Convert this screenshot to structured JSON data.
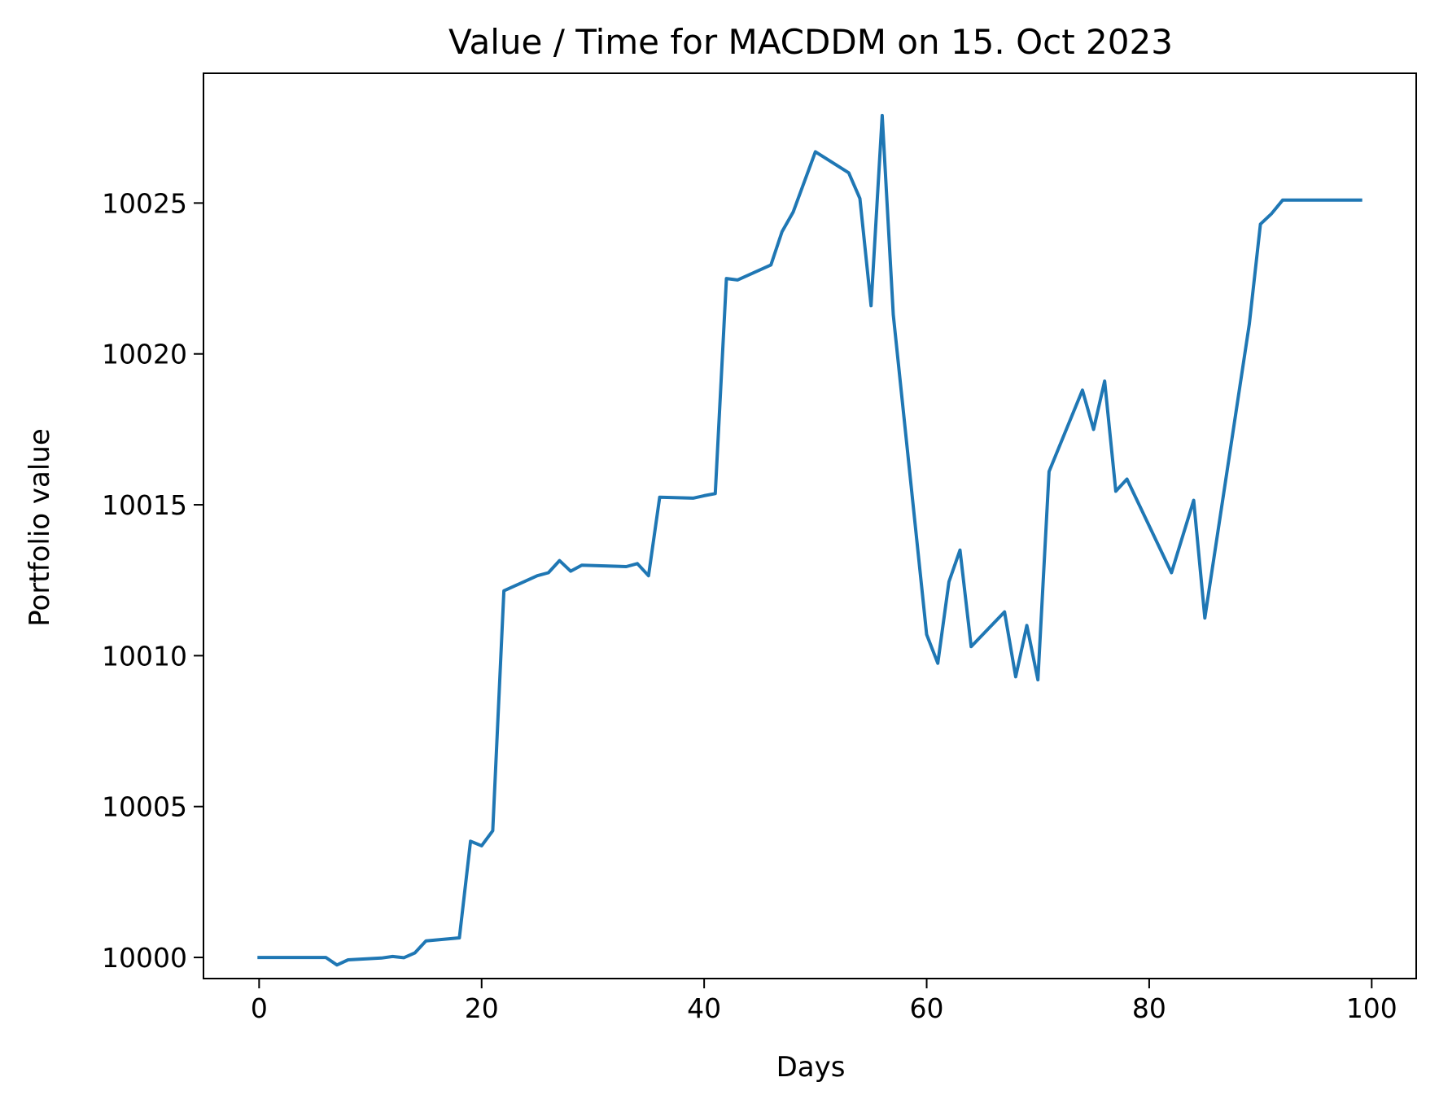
{
  "chart_data": {
    "type": "line",
    "title": "Value / Time for MACDDM on 15. Oct 2023",
    "xlabel": "Days",
    "ylabel": "Portfolio value",
    "xlim": [
      -5,
      104
    ],
    "ylim": [
      9999.3,
      10029.3
    ],
    "x_ticks": [
      0,
      20,
      40,
      60,
      80,
      100
    ],
    "y_ticks": [
      10000,
      10005,
      10010,
      10015,
      10020,
      10025
    ],
    "grid": false,
    "legend": "none",
    "series": [
      {
        "color": "#1f77b4",
        "points": [
          [
            0,
            10000.0
          ],
          [
            6,
            10000.0
          ],
          [
            7,
            9999.75
          ],
          [
            8,
            9999.92
          ],
          [
            11,
            9999.98
          ],
          [
            12,
            10000.03
          ],
          [
            13,
            9999.99
          ],
          [
            14,
            10000.15
          ],
          [
            15,
            10000.55
          ],
          [
            18,
            10000.65
          ],
          [
            19,
            10003.85
          ],
          [
            20,
            10003.7
          ],
          [
            21,
            10004.2
          ],
          [
            22,
            10012.15
          ],
          [
            25,
            10012.65
          ],
          [
            26,
            10012.75
          ],
          [
            27,
            10013.15
          ],
          [
            28,
            10012.8
          ],
          [
            29,
            10013.0
          ],
          [
            33,
            10012.95
          ],
          [
            34,
            10013.05
          ],
          [
            35,
            10012.65
          ],
          [
            36,
            10015.25
          ],
          [
            39,
            10015.22
          ],
          [
            40,
            10015.3
          ],
          [
            41,
            10015.37
          ],
          [
            42,
            10022.5
          ],
          [
            43,
            10022.45
          ],
          [
            46,
            10022.95
          ],
          [
            47,
            10024.05
          ],
          [
            48,
            10024.7
          ],
          [
            50,
            10026.7
          ],
          [
            53,
            10026.0
          ],
          [
            54,
            10025.15
          ],
          [
            55,
            10021.6
          ],
          [
            56,
            10027.9
          ],
          [
            57,
            10021.3
          ],
          [
            60,
            10010.7
          ],
          [
            61,
            10009.75
          ],
          [
            62,
            10012.45
          ],
          [
            63,
            10013.5
          ],
          [
            64,
            10010.3
          ],
          [
            67,
            10011.45
          ],
          [
            68,
            10009.3
          ],
          [
            69,
            10011.0
          ],
          [
            70,
            10009.2
          ],
          [
            71,
            10016.1
          ],
          [
            74,
            10018.8
          ],
          [
            75,
            10017.5
          ],
          [
            76,
            10019.1
          ],
          [
            77,
            10015.45
          ],
          [
            78,
            10015.85
          ],
          [
            82,
            10012.75
          ],
          [
            84,
            10015.15
          ],
          [
            85,
            10011.25
          ],
          [
            89,
            10021.0
          ],
          [
            90,
            10024.3
          ],
          [
            91,
            10024.65
          ],
          [
            92,
            10025.1
          ],
          [
            99,
            10025.1
          ]
        ]
      }
    ]
  }
}
